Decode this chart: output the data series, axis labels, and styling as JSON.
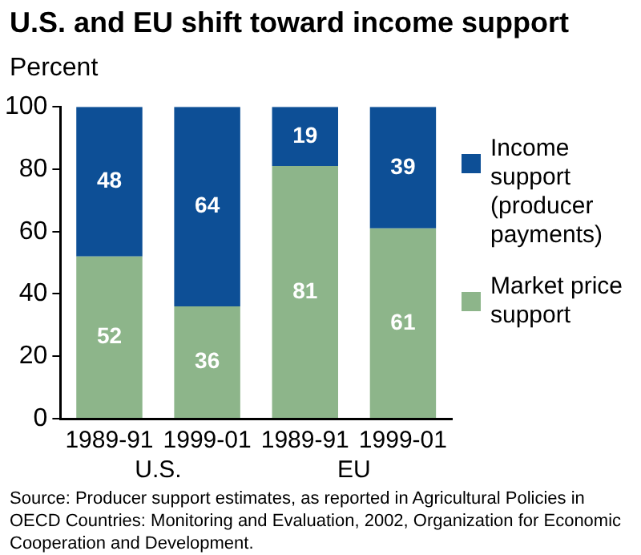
{
  "chart_data": {
    "type": "bar",
    "title": "U.S. and EU shift toward income support",
    "ylabel": "Percent",
    "categories": [
      "1989-91",
      "1999-01",
      "1989-91",
      "1999-01"
    ],
    "stacked": true,
    "series": [
      {
        "name": "Market price support",
        "color": "#8db58a",
        "values": [
          52,
          36,
          81,
          61
        ]
      },
      {
        "name": "Income support (producer payments)",
        "color": "#0d4f96",
        "values": [
          48,
          64,
          19,
          39
        ]
      }
    ],
    "ylim": [
      0,
      100
    ],
    "yticks": [
      0,
      20,
      40,
      60,
      80,
      100
    ],
    "grid": false,
    "legend": "right",
    "data_labels": true,
    "annotations": [
      "U.S.",
      "EU",
      "Source:  Producer support estimates, as reported in Agricultural Policies in OECD Countries:  Monitoring and Evaluation, 2002, Organization for Economic Cooperation and Development."
    ]
  }
}
